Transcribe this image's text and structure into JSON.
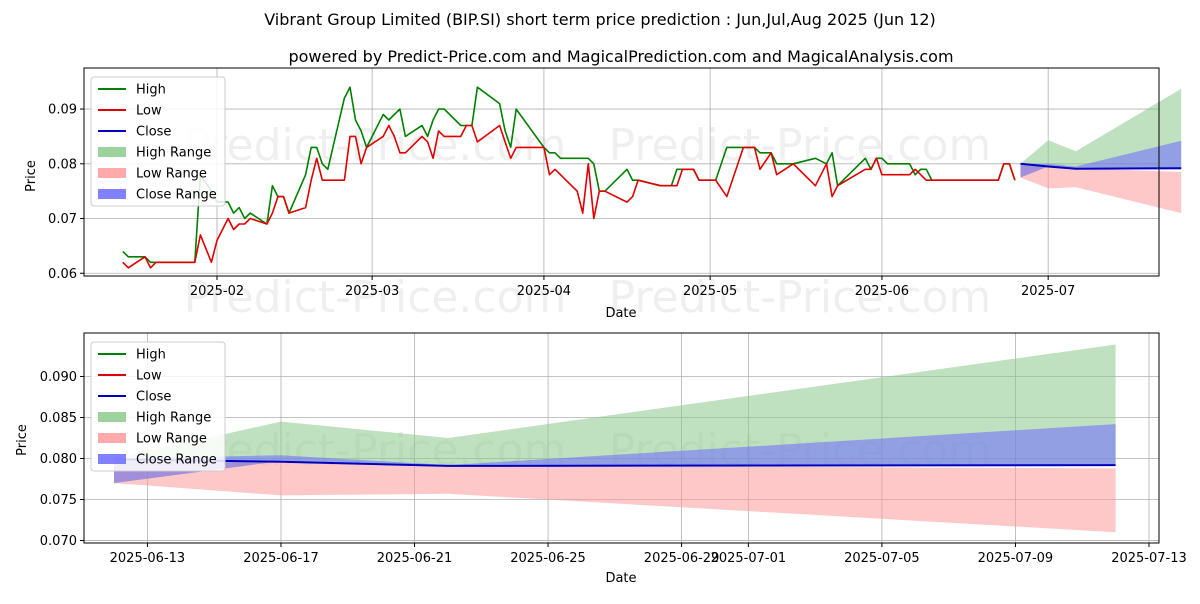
{
  "header": {
    "title": "Vibrant Group Limited (BIP.SI) short term price prediction : Jun,Jul,Aug 2025 (Jun 12)",
    "subtitle": "powered by Predict-Price.com and MagicalPrediction.com and MagicalAnalysis.com"
  },
  "watermark": "Predict-Price.com",
  "colors": {
    "high": "#008000",
    "low": "#e00000",
    "close": "#0000c0",
    "high_range": "#8cc98c",
    "low_range": "#ff9a9a",
    "close_range": "#6b6bff"
  },
  "legend": {
    "high": "High",
    "low": "Low",
    "close": "Close",
    "high_range": "High Range",
    "low_range": "Low Range",
    "close_range": "Close Range"
  },
  "chart_data": [
    {
      "type": "line",
      "name": "history",
      "xlabel": "Date",
      "ylabel": "Price",
      "xlim": [
        "2025-01-08",
        "2025-07-21"
      ],
      "ylim": [
        0.0595,
        0.0975
      ],
      "x_ticks": [
        "2025-02-01",
        "2025-03-01",
        "2025-04-01",
        "2025-05-01",
        "2025-06-01",
        "2025-07-01"
      ],
      "x_tick_labels": [
        "2025-02",
        "2025-03",
        "2025-04",
        "2025-05",
        "2025-06",
        "2025-07"
      ],
      "y_ticks": [
        0.06,
        0.07,
        0.08,
        0.09
      ],
      "y_tick_labels": [
        "0.06",
        "0.07",
        "0.08",
        "0.09"
      ],
      "grid": true,
      "legend_position": "top-left",
      "series": [
        {
          "name": "High",
          "points": [
            [
              "2025-01-15",
              0.064
            ],
            [
              "2025-01-16",
              0.063
            ],
            [
              "2025-01-19",
              0.063
            ],
            [
              "2025-01-20",
              0.062
            ],
            [
              "2025-01-21",
              0.062
            ],
            [
              "2025-01-22",
              0.062
            ],
            [
              "2025-01-28",
              0.062
            ],
            [
              "2025-01-29",
              0.078
            ],
            [
              "2025-01-31",
              0.075
            ],
            [
              "2025-02-01",
              0.073
            ],
            [
              "2025-02-03",
              0.073
            ],
            [
              "2025-02-04",
              0.071
            ],
            [
              "2025-02-05",
              0.072
            ],
            [
              "2025-02-06",
              0.07
            ],
            [
              "2025-02-07",
              0.071
            ],
            [
              "2025-02-10",
              0.069
            ],
            [
              "2025-02-11",
              0.076
            ],
            [
              "2025-02-12",
              0.074
            ],
            [
              "2025-02-13",
              0.074
            ],
            [
              "2025-02-14",
              0.071
            ],
            [
              "2025-02-17",
              0.078
            ],
            [
              "2025-02-18",
              0.083
            ],
            [
              "2025-02-19",
              0.083
            ],
            [
              "2025-02-20",
              0.08
            ],
            [
              "2025-02-21",
              0.079
            ],
            [
              "2025-02-24",
              0.092
            ],
            [
              "2025-02-25",
              0.094
            ],
            [
              "2025-02-26",
              0.088
            ],
            [
              "2025-02-27",
              0.086
            ],
            [
              "2025-02-28",
              0.083
            ],
            [
              "2025-03-03",
              0.089
            ],
            [
              "2025-03-04",
              0.088
            ],
            [
              "2025-03-05",
              0.089
            ],
            [
              "2025-03-06",
              0.09
            ],
            [
              "2025-03-07",
              0.085
            ],
            [
              "2025-03-10",
              0.087
            ],
            [
              "2025-03-11",
              0.085
            ],
            [
              "2025-03-12",
              0.088
            ],
            [
              "2025-03-13",
              0.09
            ],
            [
              "2025-03-14",
              0.09
            ],
            [
              "2025-03-17",
              0.087
            ],
            [
              "2025-03-18",
              0.087
            ],
            [
              "2025-03-19",
              0.087
            ],
            [
              "2025-03-20",
              0.094
            ],
            [
              "2025-03-24",
              0.091
            ],
            [
              "2025-03-25",
              0.086
            ],
            [
              "2025-03-26",
              0.083
            ],
            [
              "2025-03-27",
              0.09
            ],
            [
              "2025-04-01",
              0.083
            ],
            [
              "2025-04-02",
              0.082
            ],
            [
              "2025-04-03",
              0.082
            ],
            [
              "2025-04-04",
              0.081
            ],
            [
              "2025-04-07",
              0.081
            ],
            [
              "2025-04-08",
              0.081
            ],
            [
              "2025-04-09",
              0.081
            ],
            [
              "2025-04-10",
              0.08
            ],
            [
              "2025-04-11",
              0.075
            ],
            [
              "2025-04-12",
              0.075
            ],
            [
              "2025-04-16",
              0.079
            ],
            [
              "2025-04-17",
              0.077
            ],
            [
              "2025-04-18",
              0.077
            ],
            [
              "2025-04-22",
              0.076
            ],
            [
              "2025-04-24",
              0.076
            ],
            [
              "2025-04-25",
              0.079
            ],
            [
              "2025-04-26",
              0.079
            ],
            [
              "2025-04-28",
              0.079
            ],
            [
              "2025-04-29",
              0.077
            ],
            [
              "2025-05-02",
              0.077
            ],
            [
              "2025-05-04",
              0.083
            ],
            [
              "2025-05-07",
              0.083
            ],
            [
              "2025-05-09",
              0.083
            ],
            [
              "2025-05-10",
              0.082
            ],
            [
              "2025-05-12",
              0.082
            ],
            [
              "2025-05-13",
              0.08
            ],
            [
              "2025-05-16",
              0.08
            ],
            [
              "2025-05-20",
              0.081
            ],
            [
              "2025-05-22",
              0.08
            ],
            [
              "2025-05-23",
              0.082
            ],
            [
              "2025-05-24",
              0.076
            ],
            [
              "2025-05-29",
              0.081
            ],
            [
              "2025-05-30",
              0.079
            ],
            [
              "2025-05-31",
              0.081
            ],
            [
              "2025-06-01",
              0.081
            ],
            [
              "2025-06-02",
              0.08
            ],
            [
              "2025-06-03",
              0.08
            ],
            [
              "2025-06-06",
              0.08
            ],
            [
              "2025-06-07",
              0.078
            ],
            [
              "2025-06-08",
              0.079
            ],
            [
              "2025-06-09",
              0.079
            ],
            [
              "2025-06-10",
              0.077
            ],
            [
              "2025-06-20",
              0.077
            ],
            [
              "2025-06-22",
              0.077
            ],
            [
              "2025-06-23",
              0.08
            ],
            [
              "2025-06-24",
              0.08
            ],
            [
              "2025-06-25",
              0.077
            ]
          ]
        },
        {
          "name": "Low",
          "points": [
            [
              "2025-01-15",
              0.062
            ],
            [
              "2025-01-16",
              0.061
            ],
            [
              "2025-01-19",
              0.063
            ],
            [
              "2025-01-20",
              0.061
            ],
            [
              "2025-01-21",
              0.062
            ],
            [
              "2025-01-22",
              0.062
            ],
            [
              "2025-01-28",
              0.062
            ],
            [
              "2025-01-29",
              0.067
            ],
            [
              "2025-01-31",
              0.062
            ],
            [
              "2025-02-01",
              0.066
            ],
            [
              "2025-02-03",
              0.07
            ],
            [
              "2025-02-04",
              0.068
            ],
            [
              "2025-02-05",
              0.069
            ],
            [
              "2025-02-06",
              0.069
            ],
            [
              "2025-02-07",
              0.07
            ],
            [
              "2025-02-10",
              0.069
            ],
            [
              "2025-02-11",
              0.071
            ],
            [
              "2025-02-12",
              0.074
            ],
            [
              "2025-02-13",
              0.074
            ],
            [
              "2025-02-14",
              0.071
            ],
            [
              "2025-02-17",
              0.072
            ],
            [
              "2025-02-18",
              0.077
            ],
            [
              "2025-02-19",
              0.081
            ],
            [
              "2025-02-20",
              0.077
            ],
            [
              "2025-02-21",
              0.077
            ],
            [
              "2025-02-24",
              0.077
            ],
            [
              "2025-02-25",
              0.085
            ],
            [
              "2025-02-26",
              0.085
            ],
            [
              "2025-02-27",
              0.08
            ],
            [
              "2025-02-28",
              0.083
            ],
            [
              "2025-03-03",
              0.085
            ],
            [
              "2025-03-04",
              0.087
            ],
            [
              "2025-03-05",
              0.085
            ],
            [
              "2025-03-06",
              0.082
            ],
            [
              "2025-03-07",
              0.082
            ],
            [
              "2025-03-10",
              0.085
            ],
            [
              "2025-03-11",
              0.084
            ],
            [
              "2025-03-12",
              0.081
            ],
            [
              "2025-03-13",
              0.086
            ],
            [
              "2025-03-14",
              0.085
            ],
            [
              "2025-03-17",
              0.085
            ],
            [
              "2025-03-18",
              0.087
            ],
            [
              "2025-03-19",
              0.087
            ],
            [
              "2025-03-20",
              0.084
            ],
            [
              "2025-03-24",
              0.087
            ],
            [
              "2025-03-25",
              0.084
            ],
            [
              "2025-03-26",
              0.081
            ],
            [
              "2025-03-27",
              0.083
            ],
            [
              "2025-04-01",
              0.083
            ],
            [
              "2025-04-02",
              0.078
            ],
            [
              "2025-04-03",
              0.079
            ],
            [
              "2025-04-04",
              0.078
            ],
            [
              "2025-04-07",
              0.075
            ],
            [
              "2025-04-08",
              0.071
            ],
            [
              "2025-04-09",
              0.08
            ],
            [
              "2025-04-10",
              0.07
            ],
            [
              "2025-04-11",
              0.075
            ],
            [
              "2025-04-12",
              0.075
            ],
            [
              "2025-04-16",
              0.073
            ],
            [
              "2025-04-17",
              0.074
            ],
            [
              "2025-04-18",
              0.077
            ],
            [
              "2025-04-22",
              0.076
            ],
            [
              "2025-04-24",
              0.076
            ],
            [
              "2025-04-25",
              0.076
            ],
            [
              "2025-04-26",
              0.079
            ],
            [
              "2025-04-28",
              0.079
            ],
            [
              "2025-04-29",
              0.077
            ],
            [
              "2025-05-02",
              0.077
            ],
            [
              "2025-05-04",
              0.074
            ],
            [
              "2025-05-07",
              0.083
            ],
            [
              "2025-05-09",
              0.083
            ],
            [
              "2025-05-10",
              0.079
            ],
            [
              "2025-05-12",
              0.082
            ],
            [
              "2025-05-13",
              0.078
            ],
            [
              "2025-05-16",
              0.08
            ],
            [
              "2025-05-20",
              0.076
            ],
            [
              "2025-05-22",
              0.08
            ],
            [
              "2025-05-23",
              0.074
            ],
            [
              "2025-05-24",
              0.076
            ],
            [
              "2025-05-29",
              0.079
            ],
            [
              "2025-05-30",
              0.079
            ],
            [
              "2025-05-31",
              0.081
            ],
            [
              "2025-06-01",
              0.078
            ],
            [
              "2025-06-02",
              0.078
            ],
            [
              "2025-06-03",
              0.078
            ],
            [
              "2025-06-06",
              0.078
            ],
            [
              "2025-06-07",
              0.079
            ],
            [
              "2025-06-08",
              0.078
            ],
            [
              "2025-06-09",
              0.077
            ],
            [
              "2025-06-10",
              0.077
            ],
            [
              "2025-06-20",
              0.077
            ],
            [
              "2025-06-22",
              0.077
            ],
            [
              "2025-06-23",
              0.08
            ],
            [
              "2025-06-24",
              0.08
            ],
            [
              "2025-06-25",
              0.077
            ]
          ]
        }
      ],
      "forecast": {
        "dates": [
          "2025-06-26",
          "2025-07-01",
          "2025-07-06",
          "2025-07-25"
        ],
        "high_range": {
          "upper": [
            0.08,
            0.0843,
            0.0823,
            0.0937
          ],
          "lower": [
            0.0775,
            0.0795,
            0.0792,
            0.0792
          ]
        },
        "low_range": {
          "upper": [
            0.08,
            0.0795,
            0.0792,
            0.0785
          ],
          "lower": [
            0.0775,
            0.0755,
            0.0757,
            0.071
          ]
        },
        "close_range": {
          "upper": [
            0.08,
            0.08,
            0.0795,
            0.0842
          ],
          "lower": [
            0.0775,
            0.0795,
            0.079,
            0.079
          ]
        },
        "close": [
          0.08,
          0.0795,
          0.0791,
          0.0792
        ]
      }
    },
    {
      "type": "line",
      "name": "forecast-zoom",
      "xlabel": "Date",
      "ylabel": "Price",
      "xlim": [
        "2025-06-11.1",
        "2025-07-13.3"
      ],
      "ylim": [
        0.0697,
        0.0953
      ],
      "x_ticks": [
        "2025-06-13",
        "2025-06-17",
        "2025-06-21",
        "2025-06-25",
        "2025-06-29",
        "2025-07-01",
        "2025-07-05",
        "2025-07-09",
        "2025-07-13"
      ],
      "x_tick_labels": [
        "2025-06-13",
        "2025-06-17",
        "2025-06-21",
        "2025-06-25",
        "2025-06-29",
        "2025-07-01",
        "2025-07-05",
        "2025-07-09",
        "2025-07-13"
      ],
      "y_ticks": [
        0.07,
        0.075,
        0.08,
        0.085,
        0.09
      ],
      "y_tick_labels": [
        "0.070",
        "0.075",
        "0.080",
        "0.085",
        "0.090"
      ],
      "grid": true,
      "legend_position": "top-left",
      "forecast": {
        "dates": [
          "2025-06-12",
          "2025-06-17",
          "2025-06-22",
          "2025-07-12"
        ],
        "high_range": {
          "upper": [
            0.08,
            0.0845,
            0.0825,
            0.0939
          ],
          "lower": [
            0.077,
            0.0797,
            0.0792,
            0.0793
          ]
        },
        "low_range": {
          "upper": [
            0.08,
            0.0797,
            0.0792,
            0.0788
          ],
          "lower": [
            0.077,
            0.0755,
            0.0757,
            0.071
          ]
        },
        "close_range": {
          "upper": [
            0.08,
            0.0804,
            0.0792,
            0.0842
          ],
          "lower": [
            0.077,
            0.0797,
            0.0791,
            0.0791
          ]
        },
        "close": [
          0.0799,
          0.0796,
          0.0791,
          0.0792
        ]
      }
    }
  ]
}
